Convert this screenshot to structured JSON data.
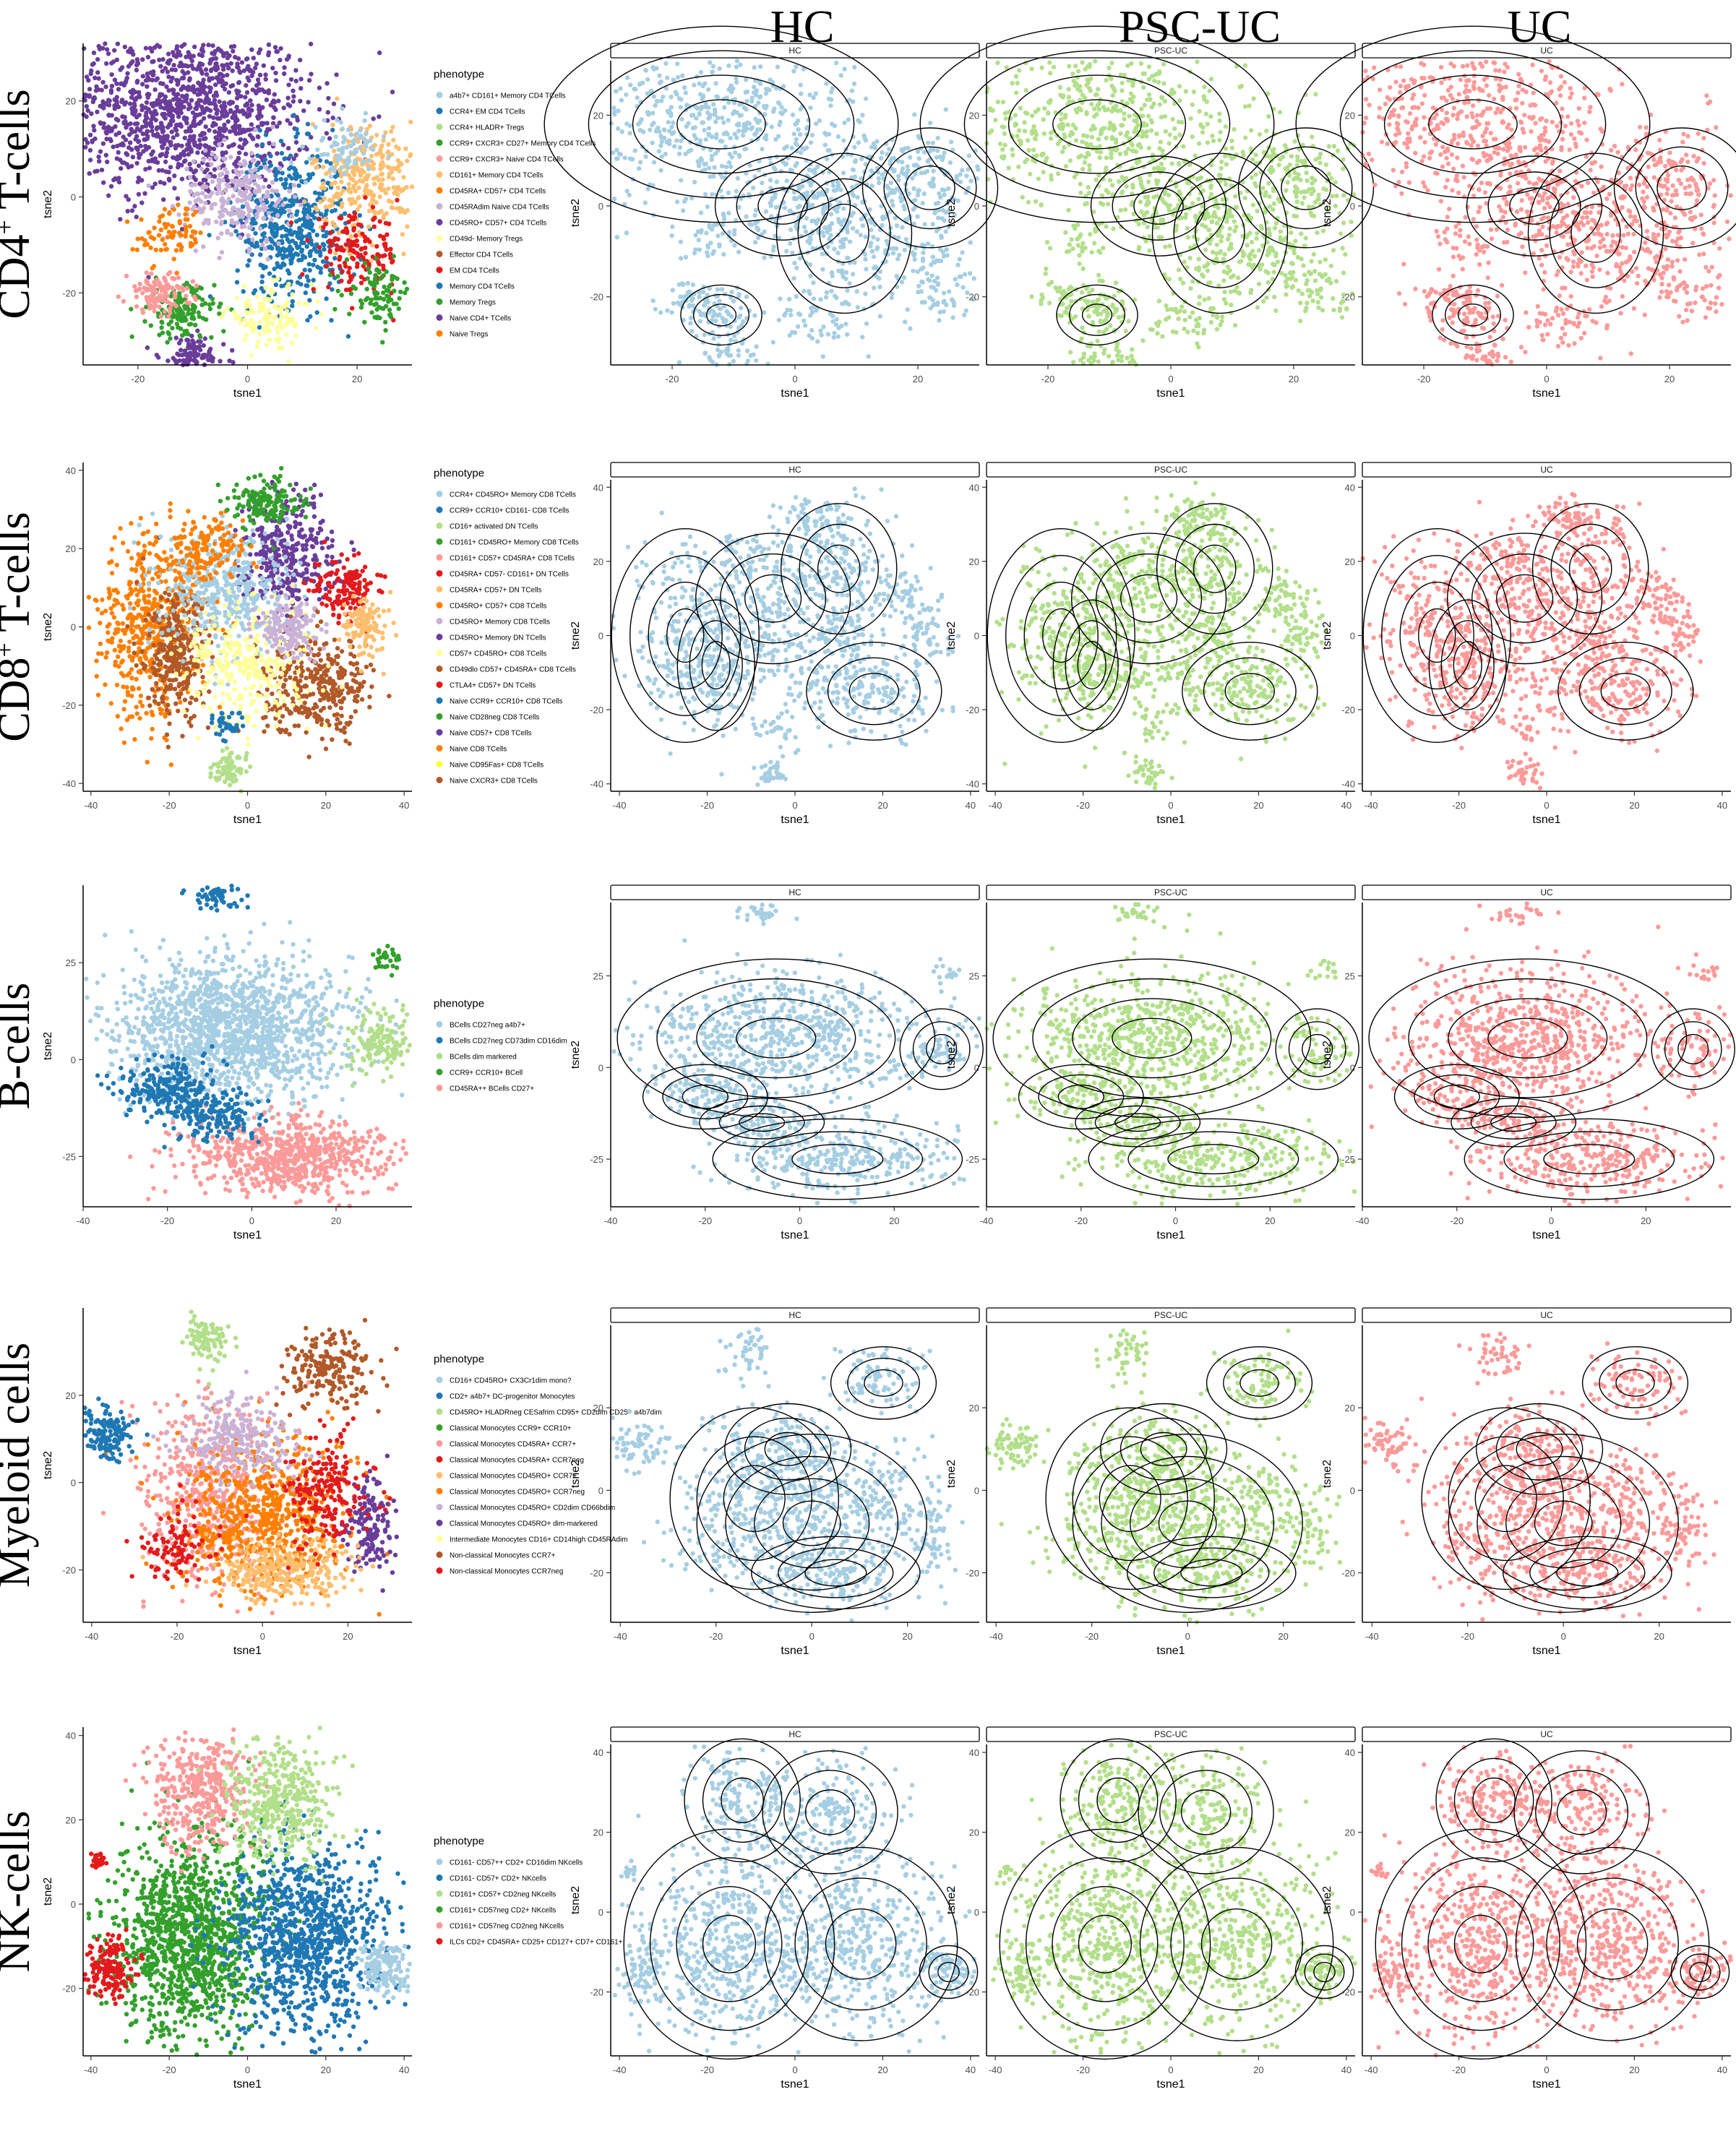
{
  "column_titles": [
    "HC",
    "PSC-UC",
    "UC"
  ],
  "row_titles": [
    {
      "text": "CD4",
      "sup": "+",
      "rest": " T-cells"
    },
    {
      "text": "CD8",
      "sup": "+",
      "rest": " T-cells"
    },
    {
      "text": "B-cells",
      "sup": "",
      "rest": ""
    },
    {
      "text": "Myeloid cells",
      "sup": "",
      "rest": ""
    },
    {
      "text": "NK-cells",
      "sup": "",
      "rest": ""
    }
  ],
  "colors": {
    "HC": "#a6cee3",
    "PSC-UC": "#b2df8a",
    "UC": "#fb9a99",
    "contour": "#000000",
    "strip_fill": "#ffffff"
  },
  "chart_data": [
    {
      "type": "scatter",
      "row": "CD4+ T-cells",
      "xlabel": "tsne1",
      "ylabel": "tsne2",
      "xticks": [
        -20,
        0,
        20
      ],
      "yticks": [
        20,
        0,
        -20
      ],
      "xlim": [
        -30,
        30
      ],
      "ylim": [
        -35,
        32
      ],
      "facet_xticks": [
        -20,
        0,
        20
      ],
      "facet_yticks": [
        20,
        0,
        -20
      ],
      "facet_xlim": [
        -30,
        30
      ],
      "facet_ylim": [
        -35,
        32
      ],
      "facets": [
        "HC",
        "PSC-UC",
        "UC"
      ],
      "legend_title": "phenotype",
      "legend": [
        {
          "label": "a4b7+ CD161+ Memory CD4 TCells",
          "color": "#a6cee3"
        },
        {
          "label": "CCR4+ EM CD4 TCells",
          "color": "#1f78b4"
        },
        {
          "label": "CCR4+ HLADR+ Tregs",
          "color": "#b2df8a"
        },
        {
          "label": "CCR9+ CXCR3+ CD27+ Memory CD4 TCells",
          "color": "#33a02c"
        },
        {
          "label": "CCR9+ CXCR3+ Naive CD4 TCells",
          "color": "#fb9a99"
        },
        {
          "label": "CD161+ Memory CD4 TCells",
          "color": "#fdbf6f"
        },
        {
          "label": "CD45RA+ CD57+ CD4 TCells",
          "color": "#ff7f00"
        },
        {
          "label": "CD45RAdim Naive CD4 TCells",
          "color": "#cab2d6"
        },
        {
          "label": "CD45RO+ CD57+ CD4 TCells",
          "color": "#6a3d9a"
        },
        {
          "label": "CD49d- Memory Tregs",
          "color": "#ffff99"
        },
        {
          "label": "Effector CD4 TCells",
          "color": "#b15928"
        },
        {
          "label": "EM CD4 TCells",
          "color": "#e31a1c"
        },
        {
          "label": "Memory CD4 TCells",
          "color": "#1f78b4"
        },
        {
          "label": "Memory Tregs",
          "color": "#33a02c"
        },
        {
          "label": "Naive CD4+ TCells",
          "color": "#6a3d9a"
        },
        {
          "label": "Naive Tregs",
          "color": "#ff7f00"
        }
      ]
    },
    {
      "type": "scatter",
      "row": "CD8+ T-cells",
      "xlabel": "tsne1",
      "ylabel": "tsne2",
      "xticks": [
        -40,
        -20,
        0,
        20,
        40
      ],
      "yticks": [
        40,
        20,
        0,
        -20,
        -40
      ],
      "xlim": [
        -42,
        42
      ],
      "ylim": [
        -42,
        42
      ],
      "facet_xticks": [
        -40,
        -20,
        0,
        20,
        40
      ],
      "facet_yticks": [
        40,
        20,
        0,
        -20,
        -40
      ],
      "facet_xlim": [
        -42,
        42
      ],
      "facet_ylim": [
        -42,
        42
      ],
      "facets": [
        "HC",
        "PSC-UC",
        "UC"
      ],
      "legend_title": "phenotype",
      "legend": [
        {
          "label": "CCR4+ CD45RO+ Memory CD8 TCells",
          "color": "#a6cee3"
        },
        {
          "label": "CCR9+ CCR10+ CD161- CD8 TCells",
          "color": "#1f78b4"
        },
        {
          "label": "CD16+ activated DN TCells",
          "color": "#b2df8a"
        },
        {
          "label": "CD161+ CD45RO+ Memory CD8 TCells",
          "color": "#33a02c"
        },
        {
          "label": "CD161+ CD57+ CD45RA+ CD8 TCells",
          "color": "#fb9a99"
        },
        {
          "label": "CD45RA+ CD57- CD161+ DN TCells",
          "color": "#e31a1c"
        },
        {
          "label": "CD45RA+ CD57+ DN TCells",
          "color": "#fdbf6f"
        },
        {
          "label": "CD45RO+ CD57+ CD8 TCells",
          "color": "#ff7f00"
        },
        {
          "label": "CD45RO+ Memory CD8 TCells",
          "color": "#cab2d6"
        },
        {
          "label": "CD45RO+ Memory DN TCells",
          "color": "#6a3d9a"
        },
        {
          "label": "CD57+ CD45RO+ CD8 TCells",
          "color": "#ffff99"
        },
        {
          "label": "CD49dlo CD57+ CD45RA+ CD8 TCells",
          "color": "#b15928"
        },
        {
          "label": "CTLA4+ CD57+ DN TCells",
          "color": "#e31a1c"
        },
        {
          "label": "Naive CCR9+ CCR10+ CD8 TCells",
          "color": "#1f78b4"
        },
        {
          "label": "Naive CD28neg CD8 TCells",
          "color": "#33a02c"
        },
        {
          "label": "Naive CD57+ CD8 TCells",
          "color": "#6a3d9a"
        },
        {
          "label": "Naive CD8 TCells",
          "color": "#ff7f00"
        },
        {
          "label": "Naive CD95Fas+ CD8 TCells",
          "color": "#ffff33"
        },
        {
          "label": "Naive CXCR3+ CD8 TCells",
          "color": "#b15928"
        }
      ]
    },
    {
      "type": "scatter",
      "row": "B-cells",
      "xlabel": "tsne1",
      "ylabel": "tsne2",
      "xticks": [
        -40,
        -20,
        0,
        20
      ],
      "yticks": [
        25,
        0,
        -25
      ],
      "xlim": [
        -40,
        38
      ],
      "ylim": [
        -38,
        45
      ],
      "facet_xticks": [
        -40,
        -20,
        0,
        20
      ],
      "facet_yticks": [
        25,
        0,
        -25
      ],
      "facet_xlim": [
        -40,
        38
      ],
      "facet_ylim": [
        -38,
        45
      ],
      "facets": [
        "HC",
        "PSC-UC",
        "UC"
      ],
      "legend_title": "phenotype",
      "legend": [
        {
          "label": "BCells CD27neg a4b7+",
          "color": "#a6cee3"
        },
        {
          "label": "BCells CD27neg CD73dim CD16dim",
          "color": "#1f78b4"
        },
        {
          "label": "BCells dim markered",
          "color": "#b2df8a"
        },
        {
          "label": "CCR9+ CCR10+ BCell",
          "color": "#33a02c"
        },
        {
          "label": "CD45RA++ BCells CD27+",
          "color": "#fb9a99"
        }
      ]
    },
    {
      "type": "scatter",
      "row": "Myeloid cells",
      "xlabel": "tsne1",
      "ylabel": "tsne2",
      "xticks": [
        -40,
        -20,
        0,
        20
      ],
      "yticks": [
        20,
        0,
        -20
      ],
      "xlim": [
        -42,
        35
      ],
      "ylim": [
        -32,
        40
      ],
      "facet_xticks": [
        -40,
        -20,
        0,
        20
      ],
      "facet_yticks": [
        20,
        0,
        -20
      ],
      "facet_xlim": [
        -42,
        35
      ],
      "facet_ylim": [
        -32,
        40
      ],
      "facets": [
        "HC",
        "PSC-UC",
        "UC"
      ],
      "legend_title": "phenotype",
      "legend": [
        {
          "label": "CD16+ CD45RO+ CX3Cr1dim mono?",
          "color": "#a6cee3"
        },
        {
          "label": "CD2+ a4b7+ DC-progenitor Monocytes",
          "color": "#1f78b4"
        },
        {
          "label": "CD45RO+ HLADRneg CESafrim CD95+ CD2dim CD25+ a4b7dim",
          "color": "#b2df8a"
        },
        {
          "label": "Classical Monocytes CCR9+ CCR10+",
          "color": "#33a02c"
        },
        {
          "label": "Classical Monocytes CD45RA+ CCR7+",
          "color": "#fb9a99"
        },
        {
          "label": "Classical Monocytes CD45RA+ CCR7neg",
          "color": "#e31a1c"
        },
        {
          "label": "Classical Monocytes CD45RO+ CCR7+",
          "color": "#fdbf6f"
        },
        {
          "label": "Classical Monocytes CD45RO+ CCR7neg",
          "color": "#ff7f00"
        },
        {
          "label": "Classical Monocytes CD45RO+ CD2dim CD66bdim",
          "color": "#cab2d6"
        },
        {
          "label": "Classical Monocytes CD45RO+ dim-markered",
          "color": "#6a3d9a"
        },
        {
          "label": "Intermediate Monocytes CD16+ CD14high CD45RAdim",
          "color": "#ffff99"
        },
        {
          "label": "Non-classical Monocytes CCR7+",
          "color": "#b15928"
        },
        {
          "label": "Non-classical Monocytes CCR7neg",
          "color": "#e31a1c"
        }
      ]
    },
    {
      "type": "scatter",
      "row": "NK-cells",
      "xlabel": "tsne1",
      "ylabel": "tsne2",
      "xticks": [
        -40,
        -20,
        0,
        20,
        40
      ],
      "yticks": [
        40,
        20,
        0,
        -20
      ],
      "xlim": [
        -42,
        42
      ],
      "ylim": [
        -36,
        42
      ],
      "facet_xticks": [
        -40,
        -20,
        0,
        20,
        40
      ],
      "facet_yticks": [
        40,
        20,
        0,
        -20
      ],
      "facet_xlim": [
        -42,
        42
      ],
      "facet_ylim": [
        -36,
        42
      ],
      "facets": [
        "HC",
        "PSC-UC",
        "UC"
      ],
      "legend_title": "phenotype",
      "legend": [
        {
          "label": "CD161- CD57++ CD2+ CD16dim NKcells",
          "color": "#a6cee3"
        },
        {
          "label": "CD161- CD57+ CD2+ NKcells",
          "color": "#1f78b4"
        },
        {
          "label": "CD161+ CD57+ CD2neg NKcells",
          "color": "#b2df8a"
        },
        {
          "label": "CD161+ CD57neg CD2+ NKcells",
          "color": "#33a02c"
        },
        {
          "label": "CD161+ CD57neg CD2neg NKcells",
          "color": "#fb9a99"
        },
        {
          "label": "ILCs CD2+ CD45RA+ CD25+ CD127+ CD7+ CD161+",
          "color": "#e31a1c"
        }
      ]
    }
  ]
}
